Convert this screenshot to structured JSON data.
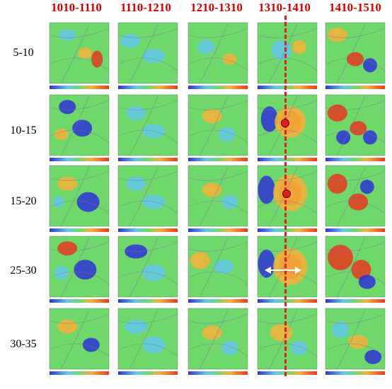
{
  "columns": [
    {
      "label": "1010-1110"
    },
    {
      "label": "1110-1210"
    },
    {
      "label": "1210-1310"
    },
    {
      "label": "1310-1410"
    },
    {
      "label": "1410-1510"
    }
  ],
  "rows": [
    {
      "label": "5-10"
    },
    {
      "label": "10-15"
    },
    {
      "label": "15-20"
    },
    {
      "label": "25-30"
    },
    {
      "label": "30-35"
    }
  ],
  "colors": {
    "header": "#d40000",
    "marker": "#e02020",
    "base": "#6fd86a",
    "warm": "#f6b13a",
    "hot": "#e8381e",
    "cool": "#63c7e8",
    "cold": "#2e33d6"
  }
}
